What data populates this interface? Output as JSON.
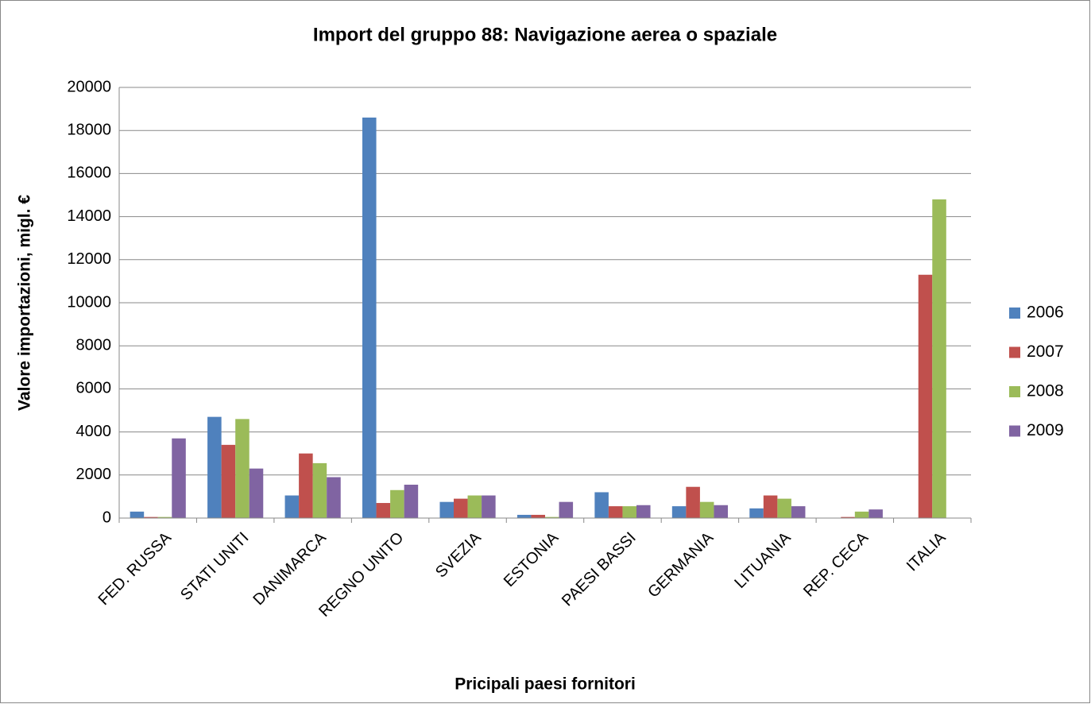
{
  "chart_data": {
    "type": "bar",
    "title": "Import del gruppo 88: Navigazione aerea o spaziale",
    "x_label": "Pricipali paesi fornitori",
    "y_label": "Valore importazioni, migl. €",
    "categories": [
      "FED. RUSSA",
      "STATI UNITI",
      "DANIMARCA",
      "REGNO UNITO",
      "SVEZIA",
      "ESTONIA",
      "PAESI BASSI",
      "GERMANIA",
      "LITUANIA",
      "REP. CECA",
      "ITALIA"
    ],
    "series": [
      {
        "name": "2006",
        "color": "#4f81bd",
        "values": [
          300,
          4700,
          1050,
          18600,
          750,
          150,
          1200,
          550,
          450,
          0,
          0
        ]
      },
      {
        "name": "2007",
        "color": "#c0504d",
        "values": [
          50,
          3400,
          3000,
          700,
          900,
          150,
          550,
          1450,
          1050,
          50,
          11300
        ]
      },
      {
        "name": "2008",
        "color": "#9bbb59",
        "values": [
          50,
          4600,
          2550,
          1300,
          1050,
          50,
          550,
          750,
          900,
          300,
          14800
        ]
      },
      {
        "name": "2009",
        "color": "#8064a2",
        "values": [
          3700,
          2300,
          1900,
          1550,
          1050,
          750,
          600,
          600,
          550,
          400,
          0
        ]
      }
    ],
    "ylim": [
      0,
      20000
    ],
    "yticks": [
      0,
      2000,
      4000,
      6000,
      8000,
      10000,
      12000,
      14000,
      16000,
      18000,
      20000
    ],
    "grid": true,
    "legend": "right"
  }
}
